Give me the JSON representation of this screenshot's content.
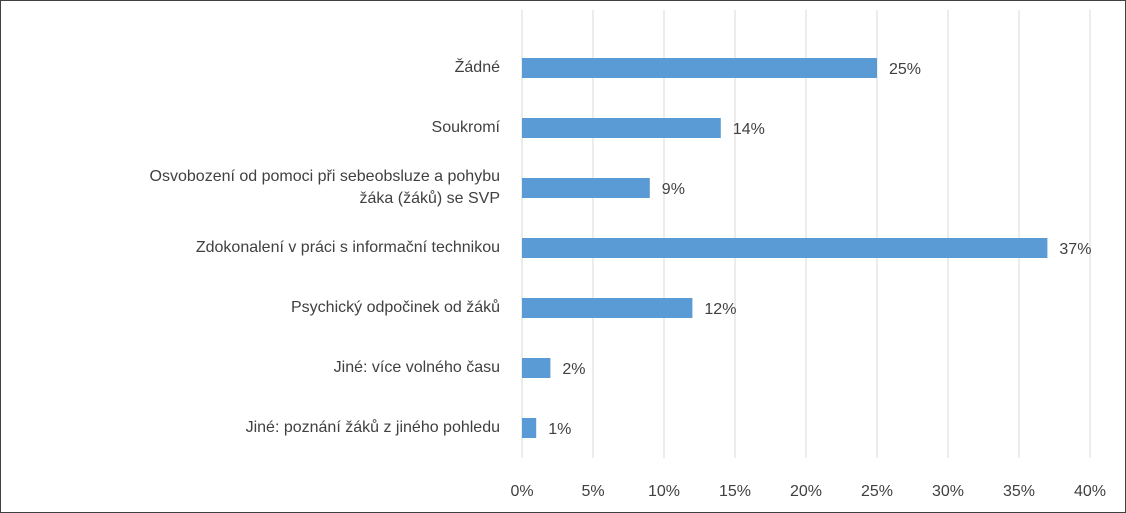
{
  "chart_data": {
    "type": "bar",
    "orientation": "horizontal",
    "categories": [
      "Žádné",
      "Soukromí",
      "Osvobození od pomoci při sebeobsluze a pohybu žáka (žáků) se SVP",
      "Zdokonalení v práci s informační technikou",
      "Psychický odpočinek od žáků",
      "Jiné: více volného času",
      "Jiné: poznání žáků z jiného pohledu"
    ],
    "values": [
      25,
      14,
      9,
      37,
      12,
      2,
      1
    ],
    "value_labels": [
      "25%",
      "14%",
      "9%",
      "37%",
      "12%",
      "2%",
      "1%"
    ],
    "color": "#5b9bd5",
    "xlim": [
      0,
      40
    ],
    "xticks": [
      {
        "value": 0,
        "label": "0%"
      },
      {
        "value": 5,
        "label": "5%"
      },
      {
        "value": 10,
        "label": "10%"
      },
      {
        "value": 15,
        "label": "15%"
      },
      {
        "value": 20,
        "label": "20%"
      },
      {
        "value": 25,
        "label": "25%"
      },
      {
        "value": 30,
        "label": "30%"
      },
      {
        "value": 35,
        "label": "35%"
      },
      {
        "value": 40,
        "label": "40%"
      }
    ],
    "grid": true
  }
}
